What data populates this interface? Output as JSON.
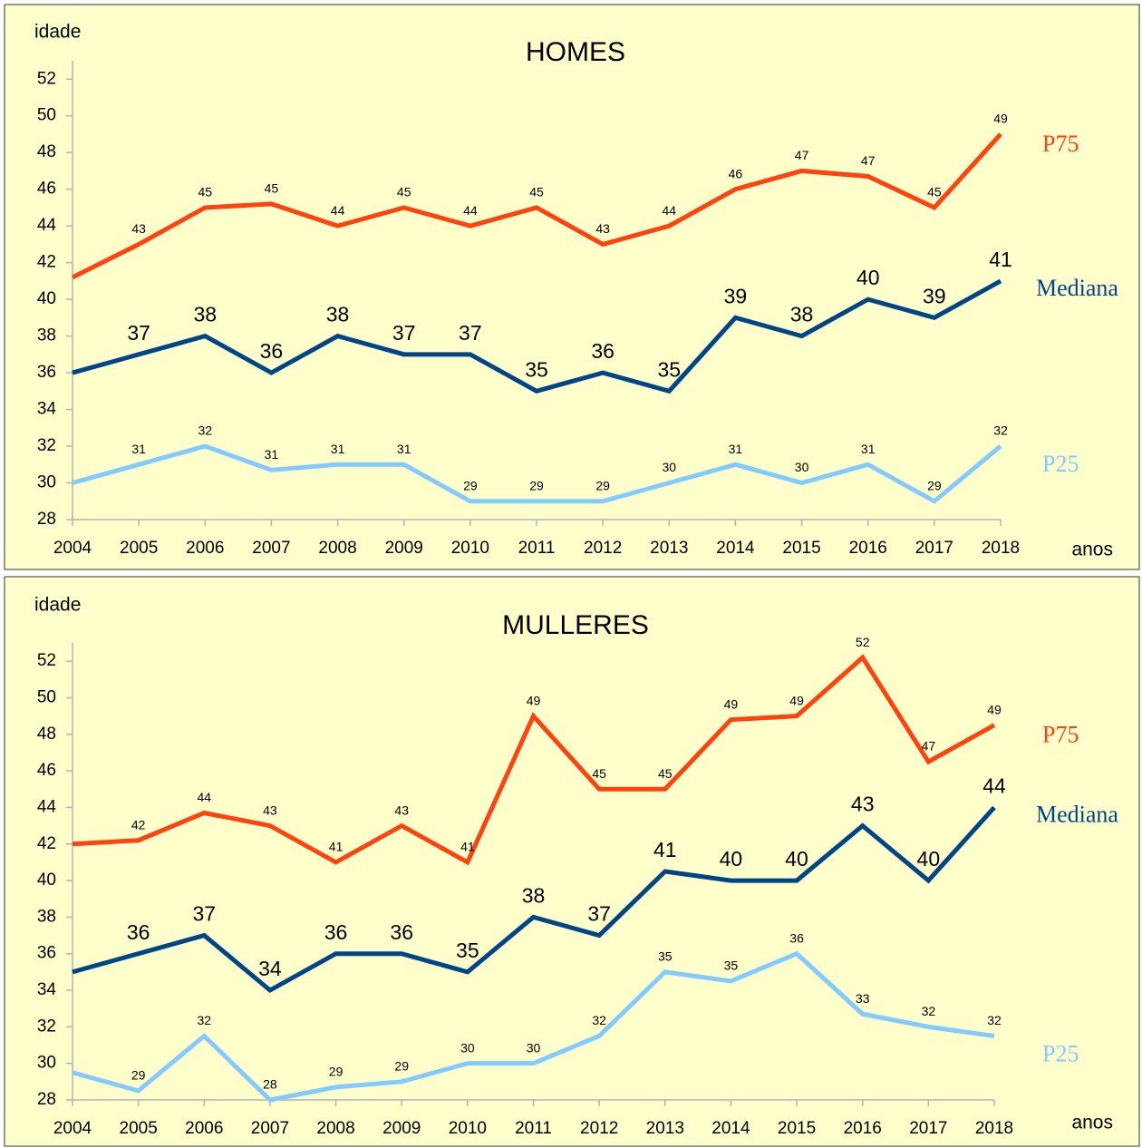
{
  "chart_data": [
    {
      "type": "line",
      "title": "HOMES",
      "y_label": "idade",
      "x_label": "anos",
      "categories": [
        "2004",
        "2005",
        "2006",
        "2007",
        "2008",
        "2009",
        "2010",
        "2011",
        "2012",
        "2013",
        "2014",
        "2015",
        "2016",
        "2017",
        "2018"
      ],
      "ylim": [
        28,
        53
      ],
      "yticks": [
        28,
        30,
        32,
        34,
        36,
        38,
        40,
        42,
        44,
        46,
        48,
        50,
        52
      ],
      "series": [
        {
          "name": "P75",
          "color": "#ff420e",
          "values": [
            41.2,
            43,
            45,
            45.2,
            44,
            45,
            44,
            45,
            43,
            44,
            46,
            47,
            46.7,
            45,
            49
          ],
          "value_labels": [
            null,
            "43",
            "45",
            "45",
            "44",
            "45",
            "44",
            "45",
            "43",
            "44",
            "46",
            "47",
            "47",
            "45",
            "49"
          ]
        },
        {
          "name": "Mediana",
          "color": "#004586",
          "values": [
            36,
            37,
            38,
            36,
            38,
            37,
            37,
            35,
            36,
            35,
            39,
            38,
            40,
            39,
            41
          ],
          "value_labels": [
            null,
            "37",
            "38",
            "36",
            "38",
            "37",
            "37",
            "35",
            "36",
            "35",
            "39",
            "38",
            "40",
            "39",
            "41"
          ]
        },
        {
          "name": "P25",
          "color": "#83caff",
          "values": [
            30,
            31,
            32,
            30.7,
            31,
            31,
            29,
            29,
            29,
            30,
            31,
            30,
            31,
            29,
            32
          ],
          "value_labels": [
            null,
            "31",
            "32",
            "31",
            "31",
            "31",
            "29",
            "29",
            "29",
            "30",
            "31",
            "30",
            "31",
            "29",
            "32"
          ]
        }
      ]
    },
    {
      "type": "line",
      "title": "MULLERES",
      "y_label": "idade",
      "x_label": "anos",
      "categories": [
        "2004",
        "2005",
        "2006",
        "2007",
        "2008",
        "2009",
        "2010",
        "2011",
        "2012",
        "2013",
        "2014",
        "2015",
        "2016",
        "2017",
        "2018"
      ],
      "ylim": [
        28,
        53
      ],
      "yticks": [
        28,
        30,
        32,
        34,
        36,
        38,
        40,
        42,
        44,
        46,
        48,
        50,
        52
      ],
      "series": [
        {
          "name": "P75",
          "color": "#ff420e",
          "values": [
            42,
            42.2,
            43.7,
            43,
            41,
            43,
            41,
            49,
            45,
            45,
            48.8,
            49,
            52.2,
            46.5,
            48.5
          ],
          "value_labels": [
            null,
            "42",
            "44",
            "43",
            "41",
            "43",
            "41",
            "49",
            "45",
            "45",
            "49",
            "49",
            "52",
            "47",
            "49"
          ]
        },
        {
          "name": "Mediana",
          "color": "#004586",
          "values": [
            35,
            36,
            37,
            34,
            36,
            36,
            35,
            38,
            37,
            40.5,
            40,
            40,
            43,
            40,
            44
          ],
          "value_labels": [
            null,
            "36",
            "37",
            "34",
            "36",
            "36",
            "35",
            "38",
            "37",
            "41",
            "40",
            "40",
            "43",
            "40",
            "44"
          ]
        },
        {
          "name": "P25",
          "color": "#83caff",
          "values": [
            29.5,
            28.5,
            31.5,
            28,
            28.7,
            29,
            30,
            30,
            31.5,
            35,
            34.5,
            36,
            32.7,
            32,
            31.5
          ],
          "value_labels": [
            null,
            "29",
            "32",
            "28",
            "29",
            "29",
            "30",
            "30",
            "32",
            "35",
            "35",
            "36",
            "33",
            "32",
            "32"
          ]
        }
      ]
    }
  ]
}
